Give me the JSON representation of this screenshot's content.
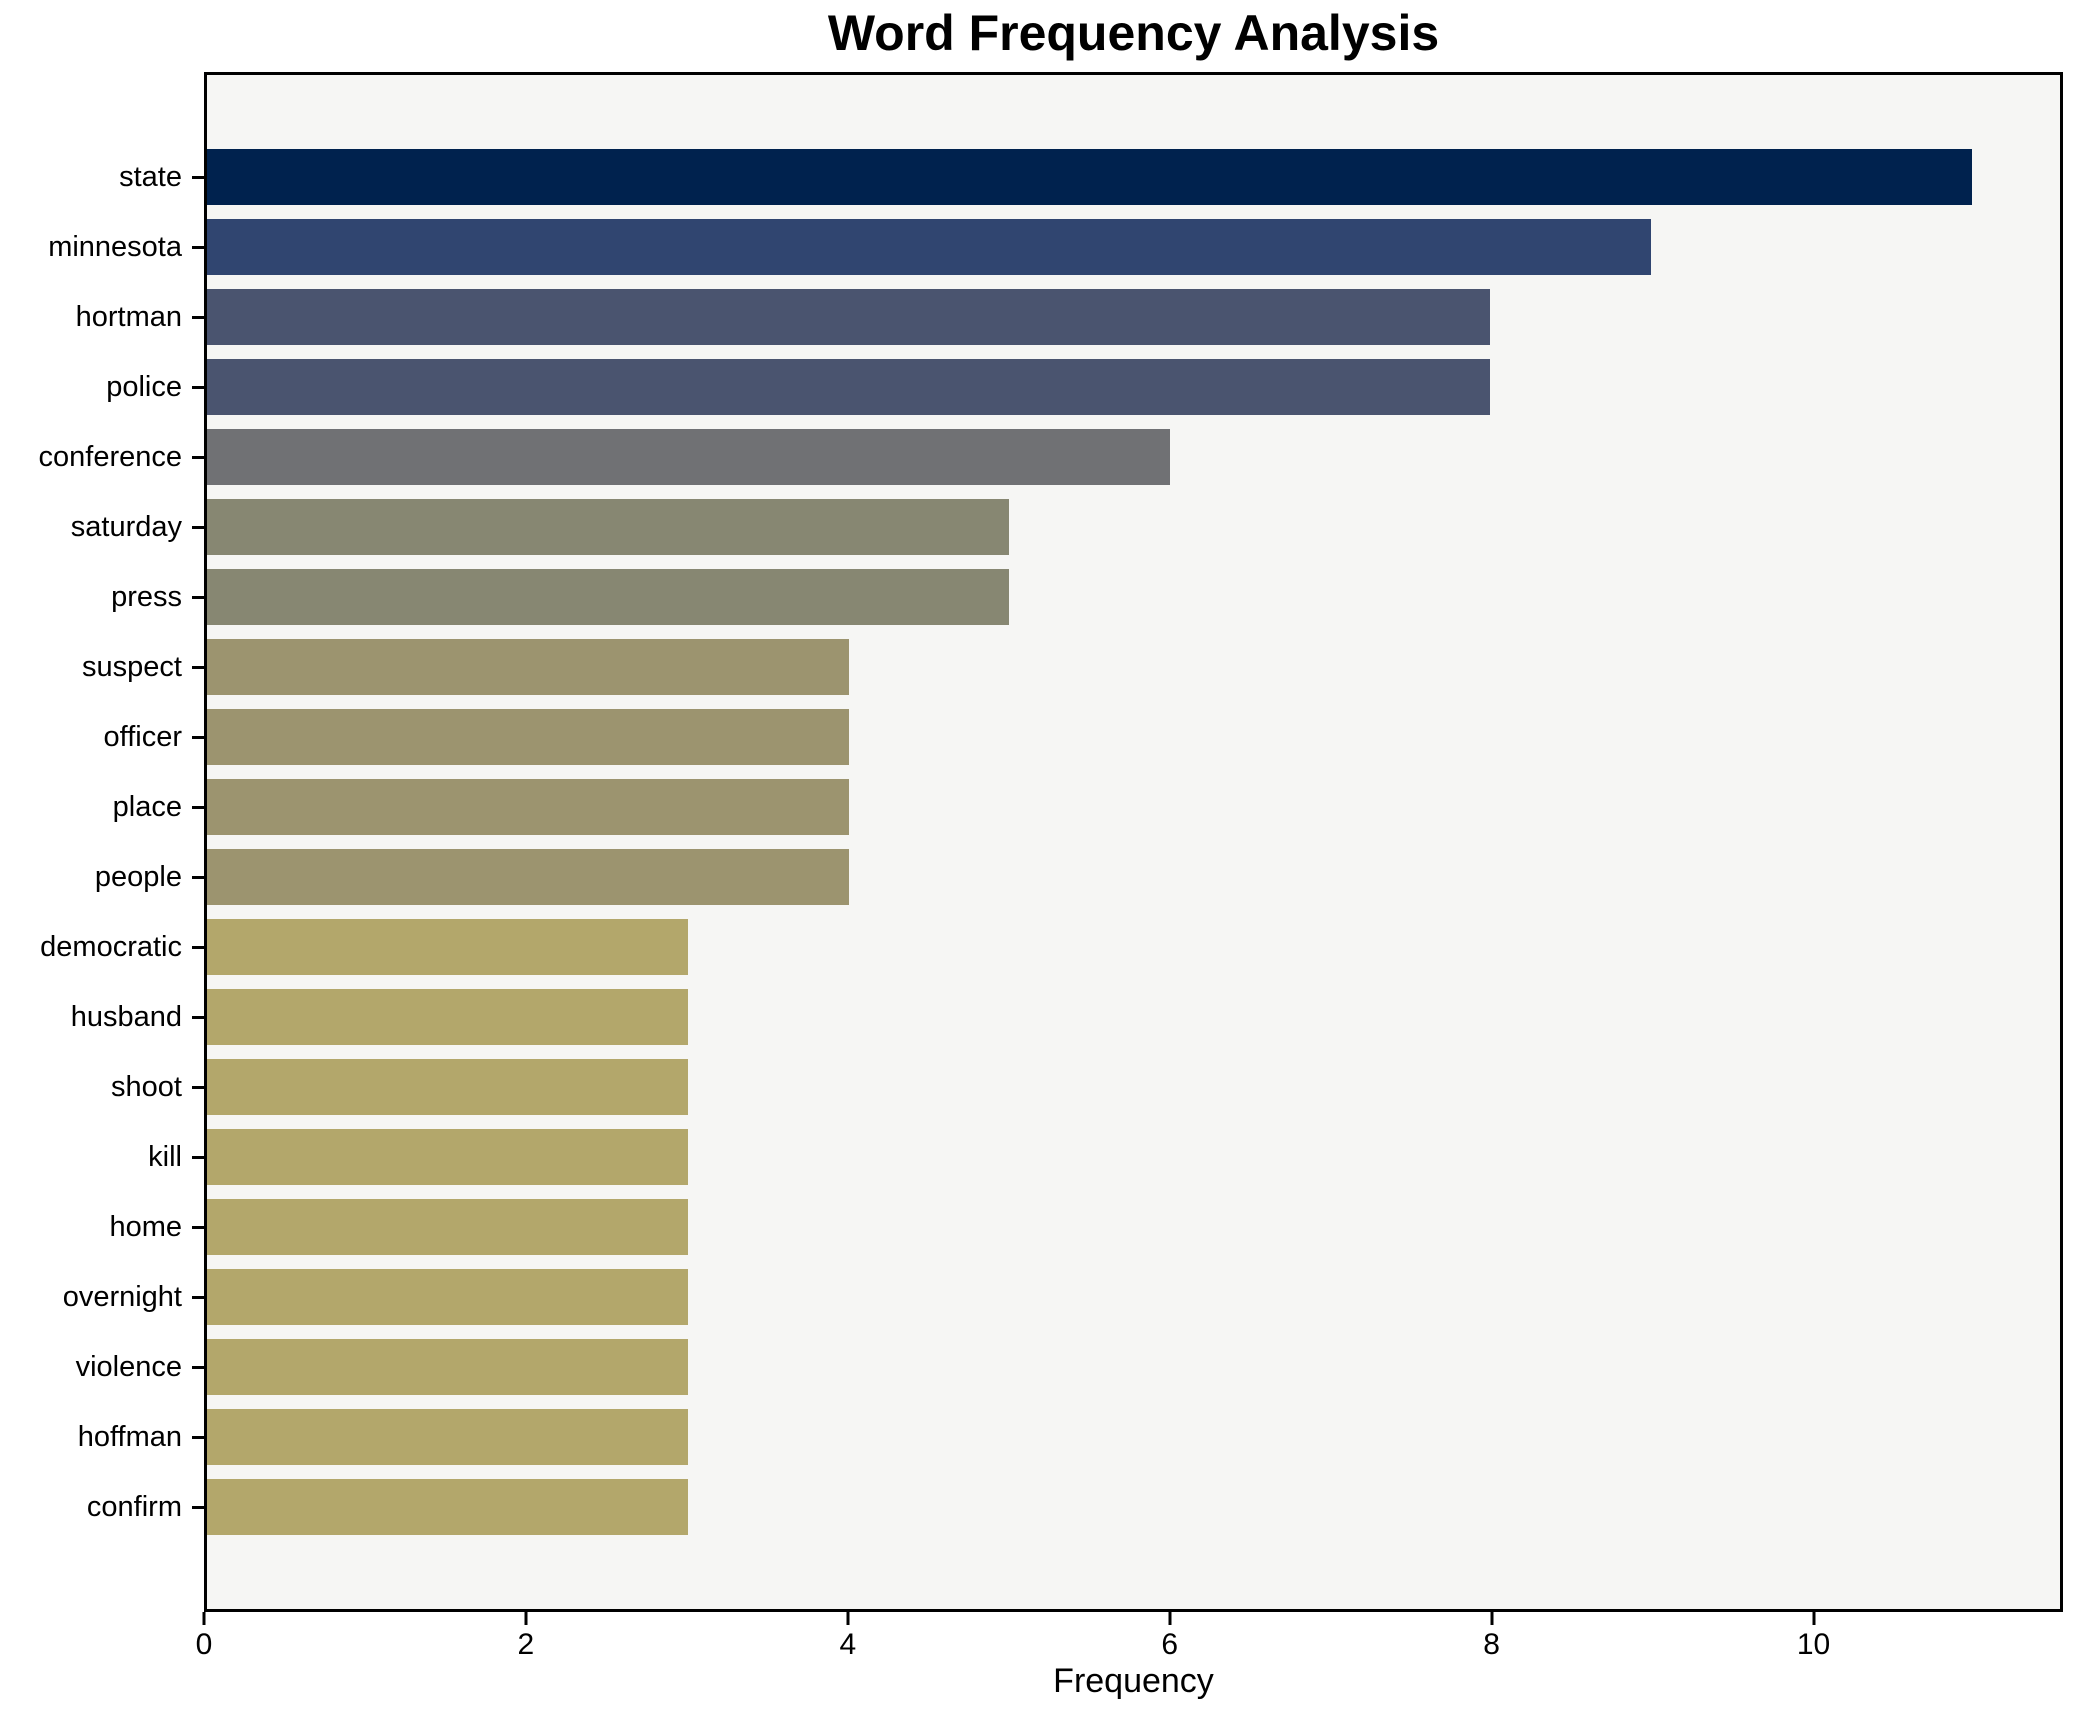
{
  "title": "Word Frequency Analysis",
  "colors": {
    "figure_bg": "#ffffff",
    "plot_bg": "#f6f6f4",
    "spine": "#000000",
    "text": "#000000"
  },
  "chart_data": {
    "type": "bar",
    "orientation": "horizontal",
    "title": "Word Frequency Analysis",
    "xlabel": "Frequency",
    "ylabel": "",
    "categories": [
      "state",
      "minnesota",
      "hortman",
      "police",
      "conference",
      "saturday",
      "press",
      "suspect",
      "officer",
      "place",
      "people",
      "democratic",
      "husband",
      "shoot",
      "kill",
      "home",
      "overnight",
      "violence",
      "hoffman",
      "confirm"
    ],
    "values": [
      11,
      9,
      8,
      8,
      6,
      5,
      5,
      4,
      4,
      4,
      4,
      3,
      3,
      3,
      3,
      3,
      3,
      3,
      3,
      3
    ],
    "bar_colors": [
      "#00224e",
      "#304570",
      "#4a546f",
      "#4a546f",
      "#707174",
      "#878772",
      "#878772",
      "#9c946f",
      "#9c946f",
      "#9c946f",
      "#9c946f",
      "#b3a76b",
      "#b3a76b",
      "#b3a76b",
      "#b3a76b",
      "#b3a76b",
      "#b3a76b",
      "#b3a76b",
      "#b3a76b",
      "#b3a76b"
    ],
    "xlim": [
      0,
      11.55
    ],
    "xticks": [
      0,
      2,
      4,
      6,
      8,
      10
    ],
    "grid": false,
    "legend": null,
    "bar_height_frac": 0.8
  }
}
